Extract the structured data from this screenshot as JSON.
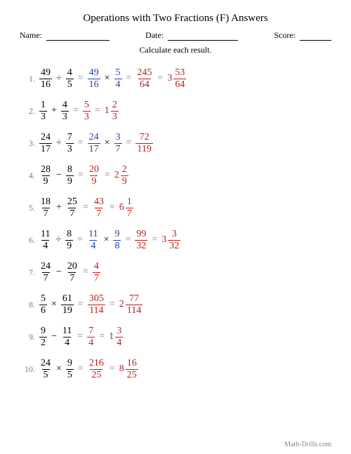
{
  "title": "Operations with Two Fractions (F) Answers",
  "name_label": "Name:",
  "date_label": "Date:",
  "score_label": "Score:",
  "instruction": "Calculate each result.",
  "footer": "Math-Drills.com",
  "colors": {
    "red": "#b91c1c",
    "blue": "#1e40af",
    "gray": "#777"
  },
  "problems": [
    {
      "i": "1.",
      "a": {
        "n": "49",
        "d": "16"
      },
      "op": "÷",
      "b": {
        "n": "4",
        "d": "5"
      },
      "flip": {
        "a": {
          "n": "49",
          "d": "16"
        },
        "b": {
          "n": "5",
          "d": "4"
        }
      },
      "res": {
        "n": "245",
        "d": "64"
      },
      "mix": {
        "w": "3",
        "n": "53",
        "d": "64"
      }
    },
    {
      "i": "2.",
      "a": {
        "n": "1",
        "d": "3"
      },
      "op": "+",
      "b": {
        "n": "4",
        "d": "3"
      },
      "res": {
        "n": "5",
        "d": "3"
      },
      "mix": {
        "w": "1",
        "n": "2",
        "d": "3"
      }
    },
    {
      "i": "3.",
      "a": {
        "n": "24",
        "d": "17"
      },
      "op": "÷",
      "b": {
        "n": "7",
        "d": "3"
      },
      "flip": {
        "a": {
          "n": "24",
          "d": "17"
        },
        "b": {
          "n": "3",
          "d": "7"
        }
      },
      "res": {
        "n": "72",
        "d": "119"
      }
    },
    {
      "i": "4.",
      "a": {
        "n": "28",
        "d": "9"
      },
      "op": "−",
      "b": {
        "n": "8",
        "d": "9"
      },
      "res": {
        "n": "20",
        "d": "9"
      },
      "mix": {
        "w": "2",
        "n": "2",
        "d": "9"
      }
    },
    {
      "i": "5.",
      "a": {
        "n": "18",
        "d": "7"
      },
      "op": "+",
      "b": {
        "n": "25",
        "d": "7"
      },
      "res": {
        "n": "43",
        "d": "7"
      },
      "mix": {
        "w": "6",
        "n": "1",
        "d": "7"
      }
    },
    {
      "i": "6.",
      "a": {
        "n": "11",
        "d": "4"
      },
      "op": "÷",
      "b": {
        "n": "8",
        "d": "9"
      },
      "flip": {
        "a": {
          "n": "11",
          "d": "4"
        },
        "b": {
          "n": "9",
          "d": "8"
        }
      },
      "res": {
        "n": "99",
        "d": "32"
      },
      "mix": {
        "w": "3",
        "n": "3",
        "d": "32"
      }
    },
    {
      "i": "7.",
      "a": {
        "n": "24",
        "d": "7"
      },
      "op": "−",
      "b": {
        "n": "20",
        "d": "7"
      },
      "res": {
        "n": "4",
        "d": "7"
      }
    },
    {
      "i": "8.",
      "a": {
        "n": "5",
        "d": "6"
      },
      "op": "×",
      "b": {
        "n": "61",
        "d": "19"
      },
      "res": {
        "n": "305",
        "d": "114"
      },
      "mix": {
        "w": "2",
        "n": "77",
        "d": "114"
      }
    },
    {
      "i": "9.",
      "a": {
        "n": "9",
        "d": "2"
      },
      "op": "−",
      "b": {
        "n": "11",
        "d": "4"
      },
      "res": {
        "n": "7",
        "d": "4"
      },
      "mix": {
        "w": "1",
        "n": "3",
        "d": "4"
      }
    },
    {
      "i": "10.",
      "a": {
        "n": "24",
        "d": "5"
      },
      "op": "×",
      "b": {
        "n": "9",
        "d": "5"
      },
      "res": {
        "n": "216",
        "d": "25"
      },
      "mix": {
        "w": "8",
        "n": "16",
        "d": "25"
      }
    }
  ]
}
